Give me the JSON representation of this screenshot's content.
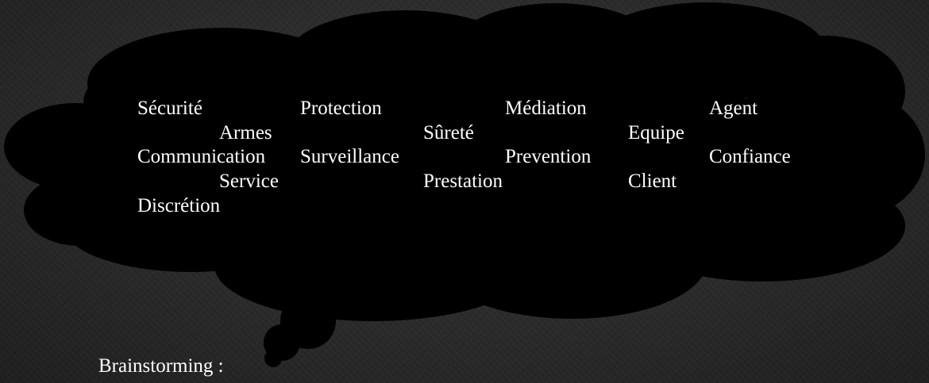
{
  "slide": {
    "background_color": "#2b2b2b",
    "bubble_color": "#000000",
    "text_color": "#ffffff",
    "caption": "Brainstorming :",
    "words": [
      "Sécurité",
      "Armes",
      "Communication",
      "Service",
      "Discrétion",
      "Protection",
      "Surveillance",
      "Sûreté",
      "Prestation",
      "Médiation",
      "Prevention",
      "Equipe",
      "Client",
      "Agent",
      "Confiance"
    ]
  }
}
